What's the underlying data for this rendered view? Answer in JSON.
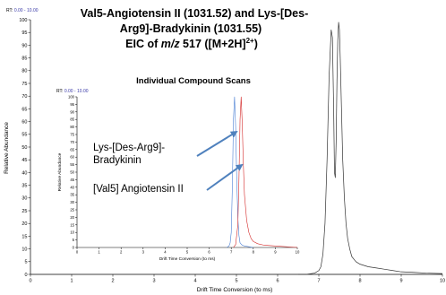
{
  "chart_data": [
    {
      "type": "line",
      "title_lines": [
        "Val5-Angiotensin II (1031.52) and Lys-[Des-",
        "Arg9]-Bradykinin (1031.55)"
      ],
      "title_eic_prefix": "EIC of ",
      "title_eic_mz": "m/z",
      "title_eic_value": " 517 ([M+2H]",
      "title_eic_sup": "2+",
      "title_eic_suffix": ")",
      "rt_label": "RT:",
      "rt_range": "0.00 - 10.00",
      "xlabel": "Drift Time Conversion (to ms)",
      "ylabel": "Relative Abundance",
      "xlim": [
        0,
        10
      ],
      "ylim": [
        0,
        100
      ],
      "x_ticks": [
        "0",
        "1",
        "2",
        "3",
        "4",
        "5",
        "6",
        "7",
        "8",
        "9",
        "10"
      ],
      "y_ticks": [
        "0",
        "5",
        "10",
        "15",
        "20",
        "25",
        "30",
        "35",
        "40",
        "45",
        "50",
        "55",
        "60",
        "65",
        "70",
        "75",
        "80",
        "85",
        "90",
        "95",
        "100"
      ],
      "series": [
        {
          "color": "#333333",
          "x": [
            6.5,
            6.7,
            6.9,
            7.0,
            7.05,
            7.1,
            7.15,
            7.2,
            7.25,
            7.3,
            7.33,
            7.36,
            7.38,
            7.4,
            7.42,
            7.44,
            7.46,
            7.48,
            7.5,
            7.52,
            7.55,
            7.58,
            7.62,
            7.66,
            7.7,
            7.75,
            7.8,
            7.9,
            8.0,
            8.2,
            8.4,
            8.6,
            8.8,
            9.0,
            9.3,
            9.6,
            10.0
          ],
          "y": [
            0,
            0,
            0.5,
            1.5,
            3,
            8,
            20,
            45,
            78,
            96,
            93,
            65,
            40,
            38,
            52,
            76,
            92,
            99,
            96,
            85,
            65,
            45,
            30,
            20,
            14,
            10,
            7,
            5,
            4,
            3,
            2.5,
            2,
            1.5,
            1,
            0.8,
            0.5,
            0.3
          ]
        }
      ]
    },
    {
      "type": "line",
      "title": "Individual Compound Scans",
      "rt_label": "RT:",
      "rt_range": "0.00 - 10.00",
      "xlabel": "Drift Time Conversion (to ms)",
      "ylabel": "Relative Abundance",
      "xlim": [
        0,
        10
      ],
      "ylim": [
        0,
        100
      ],
      "x_ticks": [
        "0",
        "1",
        "2",
        "3",
        "4",
        "5",
        "6",
        "7",
        "8",
        "9",
        "10"
      ],
      "y_ticks": [
        "0",
        "5",
        "10",
        "15",
        "20",
        "25",
        "30",
        "35",
        "40",
        "45",
        "50",
        "55",
        "60",
        "65",
        "70",
        "75",
        "80",
        "85",
        "90",
        "95",
        "100"
      ],
      "series": [
        {
          "name": "Lys-[Des-Arg9]-Bradykinin",
          "color": "#4a7fd4",
          "x": [
            6.8,
            6.9,
            6.95,
            7.0,
            7.05,
            7.1,
            7.15,
            7.2,
            7.25,
            7.3,
            7.35,
            7.4,
            7.5,
            7.6,
            7.8,
            8.0
          ],
          "y": [
            0,
            1,
            3,
            10,
            40,
            85,
            100,
            80,
            45,
            20,
            8,
            3,
            1.5,
            1,
            0.5,
            0
          ]
        },
        {
          "name": "[Val5] Angiotensin II",
          "color": "#d42a2a",
          "x": [
            7.1,
            7.2,
            7.3,
            7.35,
            7.4,
            7.45,
            7.5,
            7.55,
            7.6,
            7.7,
            7.8,
            7.9,
            8.0,
            8.2,
            8.5,
            9.0,
            9.5,
            10.0
          ],
          "y": [
            0,
            2,
            15,
            45,
            85,
            100,
            82,
            55,
            35,
            18,
            10,
            6,
            4,
            2.5,
            1.5,
            1,
            0.5,
            0
          ]
        }
      ],
      "annotations": [
        {
          "lines": [
            "Lys-[Des-Arg9]-",
            "Bradykinin"
          ],
          "target_series": 0
        },
        {
          "lines": [
            "[Val5] Angiotensin II"
          ],
          "target_series": 1
        }
      ]
    }
  ]
}
